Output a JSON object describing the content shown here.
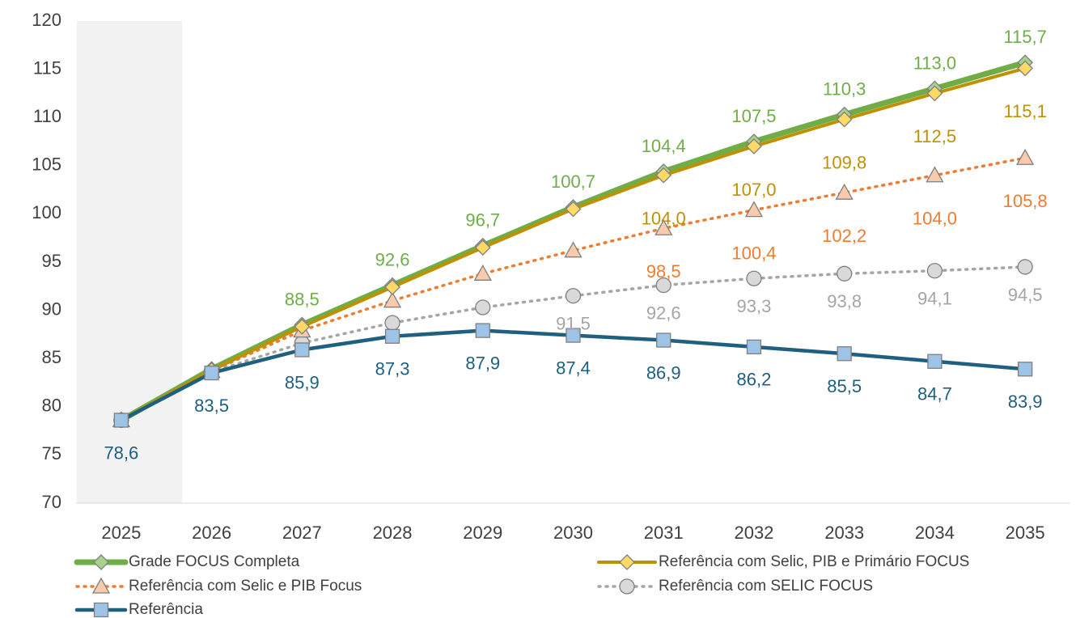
{
  "chart_data": {
    "type": "line",
    "categories": [
      "2025",
      "2026",
      "2027",
      "2028",
      "2029",
      "2030",
      "2031",
      "2032",
      "2033",
      "2034",
      "2035"
    ],
    "ylim": [
      70,
      120
    ],
    "yticks": [
      70,
      75,
      80,
      85,
      90,
      95,
      100,
      105,
      110,
      115,
      120
    ],
    "legend": "bottom",
    "series": [
      {
        "name": "Grade FOCUS Completa",
        "color": "#70ad47",
        "marker_color": "#a9d18e",
        "marker": "diamond",
        "dash": "solid",
        "values": [
          78.6,
          83.9,
          88.5,
          92.6,
          96.7,
          100.7,
          104.4,
          107.5,
          110.3,
          113.0,
          115.7
        ],
        "value_labels": [
          null,
          null,
          "88,5",
          "92,6",
          "96,7",
          "100,7",
          "104,4",
          "107,5",
          "110,3",
          "113,0",
          "115,7"
        ]
      },
      {
        "name": "Referência com Selic, PIB e Primário FOCUS",
        "color": "#bf9000",
        "marker_color": "#ffd966",
        "marker": "diamond",
        "dash": "solid",
        "values": [
          78.6,
          83.8,
          88.3,
          92.4,
          96.5,
          100.5,
          104.0,
          107.0,
          109.8,
          112.5,
          115.1
        ],
        "value_labels": [
          null,
          null,
          null,
          null,
          null,
          null,
          "104,0",
          "107,0",
          "109,8",
          "112,5",
          "115,1"
        ]
      },
      {
        "name": "Referência com Selic e PIB Focus",
        "color": "#ed7d31",
        "marker_color": "#f8cbad",
        "marker": "triangle",
        "dash": "dotted",
        "values": [
          78.6,
          83.7,
          87.9,
          91.0,
          93.8,
          96.2,
          98.5,
          100.4,
          102.2,
          104.0,
          105.8
        ],
        "value_labels": [
          null,
          null,
          null,
          null,
          null,
          null,
          "98,5",
          "100,4",
          "102,2",
          "104,0",
          "105,8"
        ]
      },
      {
        "name": "Referência com SELIC FOCUS",
        "color": "#a5a5a5",
        "marker_color": "#d9d9d9",
        "marker": "circle",
        "dash": "dotted",
        "values": [
          78.6,
          83.6,
          86.6,
          88.7,
          90.3,
          91.5,
          92.6,
          93.3,
          93.8,
          94.1,
          94.5
        ],
        "value_labels": [
          null,
          null,
          null,
          null,
          null,
          "91,5",
          "92,6",
          "93,3",
          "93,8",
          "94,1",
          "94,5"
        ]
      },
      {
        "name": "Referência",
        "color": "#1f5f7f",
        "marker_color": "#9dc3e6",
        "marker": "square",
        "dash": "solid",
        "values": [
          78.6,
          83.5,
          85.9,
          87.3,
          87.9,
          87.4,
          86.9,
          86.2,
          85.5,
          84.7,
          83.9
        ],
        "value_labels": [
          "78,6",
          "83,5",
          "85,9",
          "87,3",
          "87,9",
          "87,4",
          "86,9",
          "86,2",
          "85,5",
          "84,7",
          "83,9"
        ]
      }
    ]
  }
}
